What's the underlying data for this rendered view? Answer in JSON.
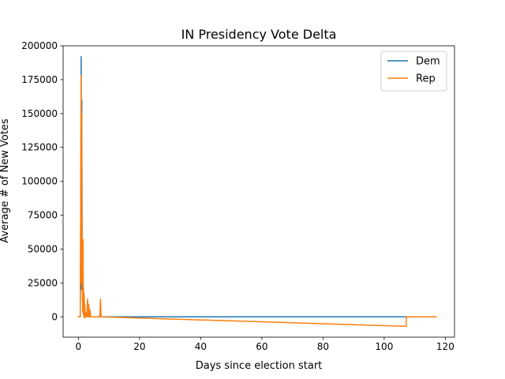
{
  "chart_data": {
    "type": "line",
    "title": "IN Presidency Vote Delta",
    "xlabel": "Days since election start",
    "ylabel": "Average # of New Votes",
    "xlim": [
      -5,
      123
    ],
    "ylim": [
      -15000,
      200000
    ],
    "xticks": [
      0,
      20,
      40,
      60,
      80,
      100,
      120
    ],
    "yticks": [
      0,
      25000,
      50000,
      75000,
      100000,
      125000,
      150000,
      175000,
      200000
    ],
    "grid": false,
    "legend_position": "top-right",
    "series": [
      {
        "name": "Dem",
        "color": "#1f77b4",
        "x": [
          0.0,
          0.6,
          0.8,
          0.9,
          1.0,
          1.1,
          1.2,
          1.3,
          1.4,
          1.5,
          1.6,
          1.7,
          1.8,
          1.9,
          2.0,
          2.1,
          2.2,
          2.3,
          2.5,
          2.8,
          3.0,
          3.2,
          3.4,
          3.6,
          3.8,
          4.0,
          7.0,
          7.2,
          7.4,
          107.2,
          107.3,
          117.0
        ],
        "y": [
          0,
          0,
          110000,
          192000,
          20000,
          160000,
          60000,
          30000,
          5000,
          55000,
          2000,
          18000,
          0,
          15000,
          0,
          8000,
          0,
          0,
          2000,
          0,
          12000,
          0,
          8000,
          0,
          4000,
          0,
          0,
          10000,
          0,
          0,
          0,
          0
        ]
      },
      {
        "name": "Rep",
        "color": "#ff7f0e",
        "x": [
          0.0,
          0.6,
          0.8,
          0.9,
          1.0,
          1.1,
          1.2,
          1.3,
          1.4,
          1.5,
          1.6,
          1.7,
          1.8,
          1.9,
          2.0,
          2.1,
          2.2,
          2.3,
          2.5,
          2.8,
          3.0,
          3.2,
          3.4,
          3.6,
          3.8,
          4.0,
          7.0,
          7.2,
          7.4,
          107.2,
          107.3,
          117.0
        ],
        "y": [
          0,
          0,
          100000,
          178000,
          25000,
          150000,
          58000,
          28000,
          4000,
          57000,
          3000,
          21000,
          0,
          16000,
          -1000,
          9000,
          0,
          0,
          3000,
          0,
          13000,
          0,
          9000,
          0,
          5000,
          0,
          0,
          13000,
          0,
          -7000,
          0,
          0
        ]
      }
    ]
  }
}
